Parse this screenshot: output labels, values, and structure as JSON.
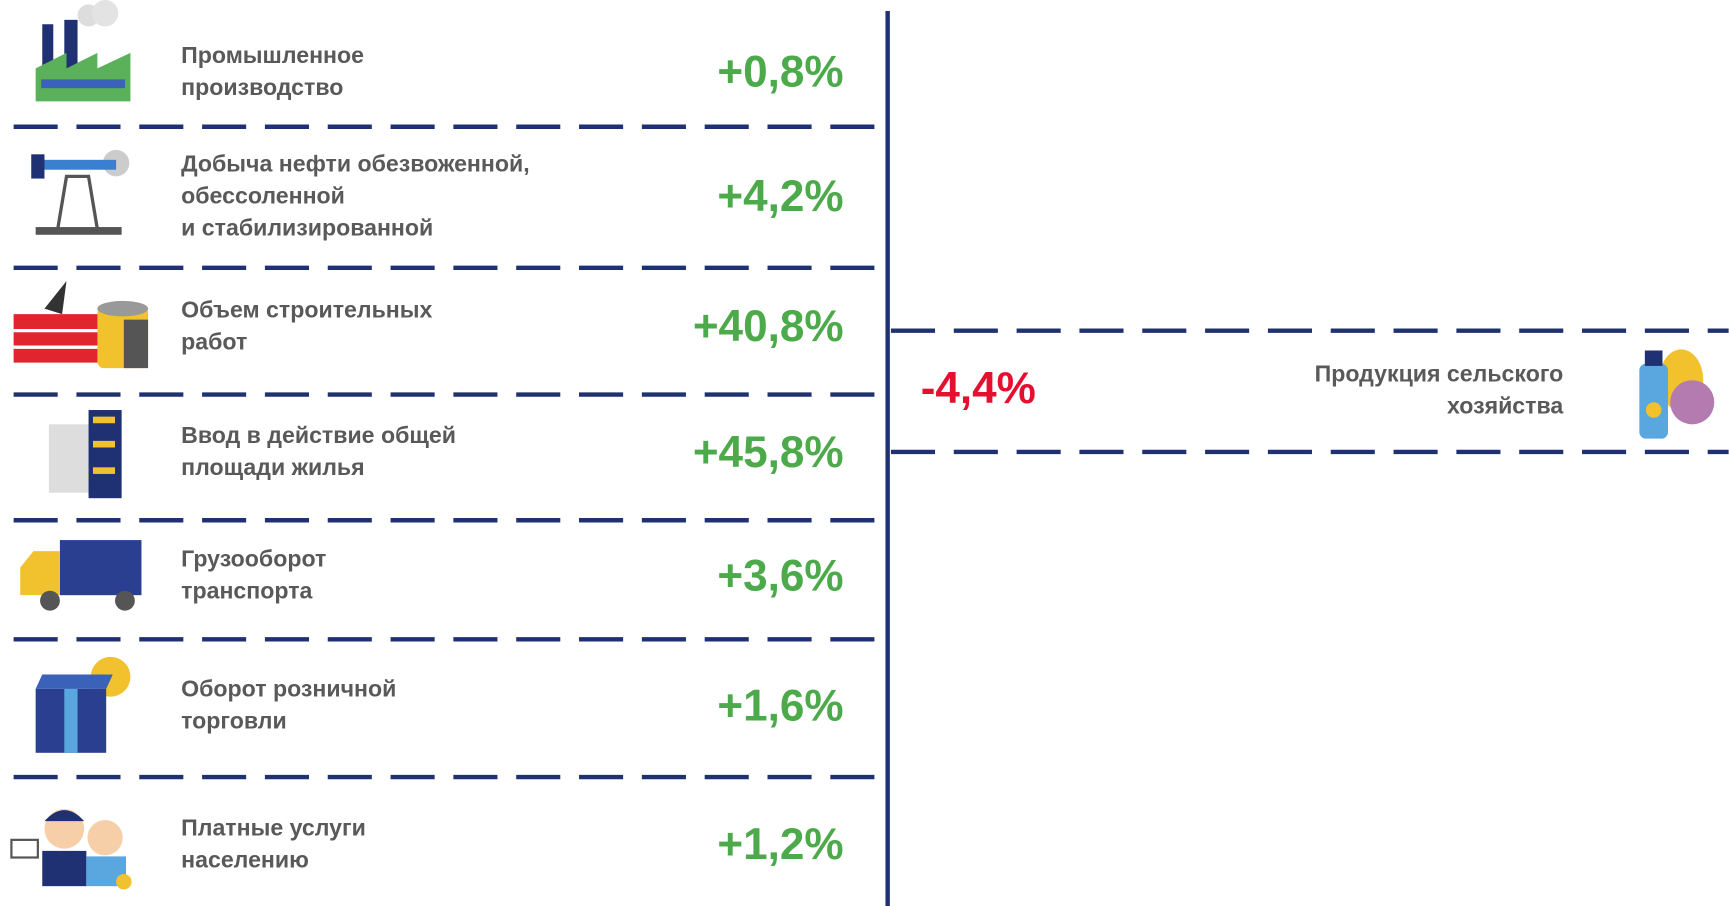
{
  "rows": [
    {
      "label": [
        "Промышленное",
        "производство"
      ],
      "value": "+0,8%"
    },
    {
      "label": [
        "Добыча нефти обезвоженной,",
        "обессоленной",
        "и стабилизированной"
      ],
      "value": "+4,2%"
    },
    {
      "label": [
        "Объем строительных",
        "работ"
      ],
      "value": "+40,8%"
    },
    {
      "label": [
        "Ввод в действие общей",
        "площади жилья"
      ],
      "value": "+45,8%"
    },
    {
      "label": [
        "Грузооборот",
        "транспорта"
      ],
      "value": "+3,6%"
    },
    {
      "label": [
        "Оборот розничной",
        "торговли"
      ],
      "value": "+1,6%"
    },
    {
      "label": [
        "Платные услуги",
        "населению"
      ],
      "value": "+1,2%"
    }
  ],
  "side": {
    "label": [
      "Продукция сельского",
      "хозяйства"
    ],
    "value": "-4,4%"
  }
}
